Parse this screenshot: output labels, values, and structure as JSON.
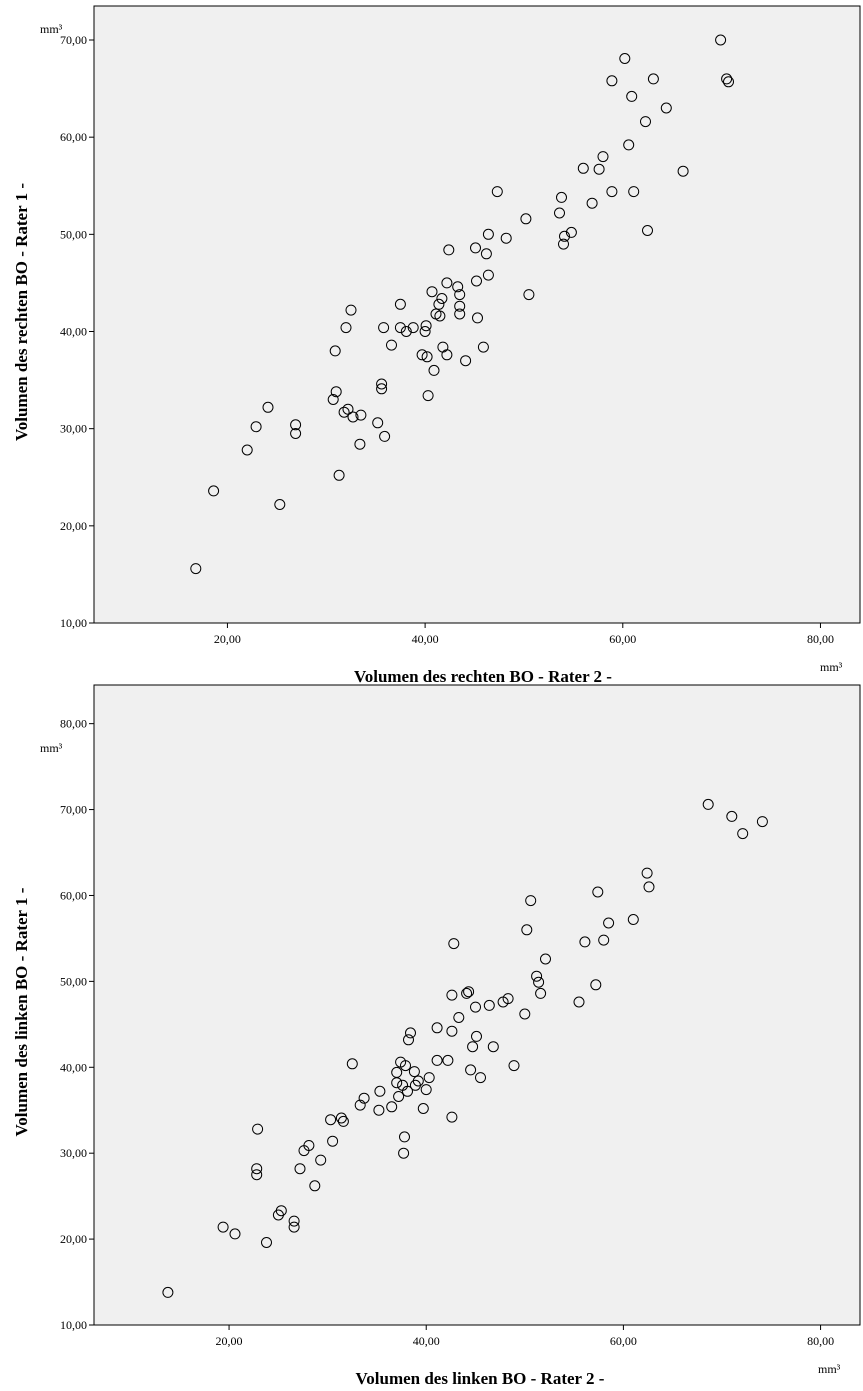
{
  "chart_data": [
    {
      "type": "scatter",
      "xlabel": "Volumen des rechten BO - Rater 2 -",
      "ylabel": "Volumen des rechten BO - Rater 1 -",
      "x_unit": "mm³",
      "y_unit": "mm³",
      "xlim": [
        6.5,
        84
      ],
      "ylim": [
        10,
        73.5
      ],
      "xticks": [
        20,
        40,
        60,
        80
      ],
      "yticks": [
        10,
        20,
        30,
        40,
        50,
        60,
        70
      ],
      "xtick_labels": [
        "20,00",
        "40,00",
        "60,00",
        "80,00"
      ],
      "ytick_labels": [
        "10,00",
        "20,00",
        "30,00",
        "40,00",
        "50,00",
        "60,00",
        "70,00"
      ],
      "grid": false,
      "points": [
        [
          16.8,
          15.6
        ],
        [
          18.6,
          23.6
        ],
        [
          22.0,
          27.8
        ],
        [
          22.9,
          30.2
        ],
        [
          24.1,
          32.2
        ],
        [
          25.3,
          22.2
        ],
        [
          26.9,
          30.4
        ],
        [
          26.9,
          29.5
        ],
        [
          30.9,
          38.0
        ],
        [
          31.0,
          33.8
        ],
        [
          30.7,
          33.0
        ],
        [
          31.3,
          25.2
        ],
        [
          31.8,
          31.7
        ],
        [
          32.2,
          32.0
        ],
        [
          32.0,
          40.4
        ],
        [
          32.5,
          42.2
        ],
        [
          32.7,
          31.2
        ],
        [
          33.5,
          31.4
        ],
        [
          33.4,
          28.4
        ],
        [
          35.2,
          30.6
        ],
        [
          35.6,
          34.6
        ],
        [
          35.6,
          34.1
        ],
        [
          35.8,
          40.4
        ],
        [
          35.9,
          29.2
        ],
        [
          36.6,
          38.6
        ],
        [
          37.5,
          42.8
        ],
        [
          37.5,
          40.4
        ],
        [
          38.1,
          40.0
        ],
        [
          38.8,
          40.4
        ],
        [
          39.7,
          37.6
        ],
        [
          40.0,
          40.0
        ],
        [
          40.1,
          40.6
        ],
        [
          40.2,
          37.4
        ],
        [
          40.3,
          33.4
        ],
        [
          40.7,
          44.1
        ],
        [
          40.9,
          36.0
        ],
        [
          41.1,
          41.8
        ],
        [
          41.4,
          42.8
        ],
        [
          41.5,
          41.6
        ],
        [
          41.7,
          43.4
        ],
        [
          41.8,
          38.4
        ],
        [
          42.2,
          37.6
        ],
        [
          42.2,
          45.0
        ],
        [
          42.4,
          48.4
        ],
        [
          43.3,
          44.6
        ],
        [
          43.5,
          43.8
        ],
        [
          43.5,
          42.6
        ],
        [
          43.5,
          41.8
        ],
        [
          44.1,
          37.0
        ],
        [
          45.1,
          48.6
        ],
        [
          45.2,
          45.2
        ],
        [
          45.3,
          41.4
        ],
        [
          45.9,
          38.4
        ],
        [
          46.2,
          48.0
        ],
        [
          46.4,
          50.0
        ],
        [
          46.4,
          45.8
        ],
        [
          47.3,
          54.4
        ],
        [
          48.2,
          49.6
        ],
        [
          50.2,
          51.6
        ],
        [
          50.5,
          43.8
        ],
        [
          53.6,
          52.2
        ],
        [
          53.8,
          53.8
        ],
        [
          54.0,
          49.0
        ],
        [
          54.1,
          49.8
        ],
        [
          54.8,
          50.2
        ],
        [
          56.0,
          56.8
        ],
        [
          56.9,
          53.2
        ],
        [
          57.6,
          56.7
        ],
        [
          58.0,
          58.0
        ],
        [
          58.9,
          54.4
        ],
        [
          58.9,
          65.8
        ],
        [
          60.2,
          68.1
        ],
        [
          60.6,
          59.2
        ],
        [
          60.9,
          64.2
        ],
        [
          61.1,
          54.4
        ],
        [
          62.3,
          61.6
        ],
        [
          62.5,
          50.4
        ],
        [
          63.1,
          66.0
        ],
        [
          64.4,
          63.0
        ],
        [
          66.1,
          56.5
        ],
        [
          69.9,
          70.0
        ],
        [
          70.5,
          66.0
        ],
        [
          70.7,
          65.7
        ]
      ]
    },
    {
      "type": "scatter",
      "xlabel": "Volumen des linken BO - Rater 2 -",
      "ylabel": "Volumen des linken BO - Rater 1 -",
      "x_unit": "mm³",
      "y_unit": "mm³",
      "xlim": [
        6.3,
        84
      ],
      "ylim": [
        10,
        84.5
      ],
      "xticks": [
        20,
        40,
        60,
        80
      ],
      "yticks": [
        10,
        20,
        30,
        40,
        50,
        60,
        70,
        80
      ],
      "xtick_labels": [
        "20,00",
        "40,00",
        "60,00",
        "80,00"
      ],
      "ytick_labels": [
        "10,00",
        "20,00",
        "30,00",
        "40,00",
        "50,00",
        "60,00",
        "70,00",
        "80,00"
      ],
      "grid": false,
      "points": [
        [
          13.8,
          13.8
        ],
        [
          19.4,
          21.4
        ],
        [
          20.6,
          20.6
        ],
        [
          22.8,
          28.2
        ],
        [
          22.8,
          27.5
        ],
        [
          22.9,
          32.8
        ],
        [
          23.8,
          19.6
        ],
        [
          25.0,
          22.8
        ],
        [
          25.3,
          23.3
        ],
        [
          26.6,
          22.1
        ],
        [
          26.6,
          21.4
        ],
        [
          27.2,
          28.2
        ],
        [
          27.6,
          30.3
        ],
        [
          28.1,
          30.9
        ],
        [
          28.7,
          26.2
        ],
        [
          29.3,
          29.2
        ],
        [
          30.3,
          33.9
        ],
        [
          30.5,
          31.4
        ],
        [
          31.4,
          34.1
        ],
        [
          31.6,
          33.7
        ],
        [
          32.5,
          40.4
        ],
        [
          33.3,
          35.6
        ],
        [
          33.7,
          36.4
        ],
        [
          35.2,
          35.0
        ],
        [
          35.3,
          37.2
        ],
        [
          36.5,
          35.4
        ],
        [
          37.0,
          39.4
        ],
        [
          37.0,
          38.2
        ],
        [
          37.2,
          36.6
        ],
        [
          37.4,
          40.6
        ],
        [
          37.6,
          37.9
        ],
        [
          37.7,
          30.0
        ],
        [
          37.8,
          31.9
        ],
        [
          37.9,
          40.2
        ],
        [
          38.1,
          37.2
        ],
        [
          38.2,
          43.2
        ],
        [
          38.4,
          44.0
        ],
        [
          38.8,
          39.5
        ],
        [
          38.9,
          37.9
        ],
        [
          39.2,
          38.4
        ],
        [
          39.7,
          35.2
        ],
        [
          40.0,
          37.4
        ],
        [
          40.3,
          38.8
        ],
        [
          41.1,
          44.6
        ],
        [
          41.1,
          40.8
        ],
        [
          42.2,
          40.8
        ],
        [
          42.6,
          48.4
        ],
        [
          42.6,
          44.2
        ],
        [
          42.6,
          34.2
        ],
        [
          42.8,
          54.4
        ],
        [
          43.3,
          45.8
        ],
        [
          44.1,
          48.6
        ],
        [
          44.3,
          48.8
        ],
        [
          44.5,
          39.7
        ],
        [
          44.7,
          42.4
        ],
        [
          45.0,
          47.0
        ],
        [
          45.1,
          43.6
        ],
        [
          45.5,
          38.8
        ],
        [
          46.4,
          47.2
        ],
        [
          46.8,
          42.4
        ],
        [
          47.8,
          47.6
        ],
        [
          48.3,
          48.0
        ],
        [
          48.9,
          40.2
        ],
        [
          50.0,
          46.2
        ],
        [
          50.2,
          56.0
        ],
        [
          50.6,
          59.4
        ],
        [
          51.2,
          50.6
        ],
        [
          51.4,
          49.9
        ],
        [
          51.6,
          48.6
        ],
        [
          52.1,
          52.6
        ],
        [
          55.5,
          47.6
        ],
        [
          56.1,
          54.6
        ],
        [
          57.2,
          49.6
        ],
        [
          57.4,
          60.4
        ],
        [
          58.0,
          54.8
        ],
        [
          58.5,
          56.8
        ],
        [
          61.0,
          57.2
        ],
        [
          62.4,
          62.6
        ],
        [
          62.6,
          61.0
        ],
        [
          68.6,
          70.6
        ],
        [
          71.0,
          69.2
        ],
        [
          72.1,
          67.2
        ],
        [
          74.1,
          68.6
        ]
      ]
    }
  ]
}
